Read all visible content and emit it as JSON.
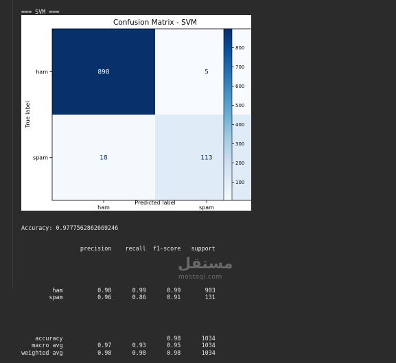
{
  "header": "=== SVM ===",
  "chart_data": {
    "type": "heatmap",
    "title": "Confusion Matrix - SVM",
    "xlabel": "Predicted label",
    "ylabel": "True label",
    "x_categories": [
      "ham",
      "spam"
    ],
    "y_categories": [
      "ham",
      "spam"
    ],
    "values": [
      [
        898,
        5
      ],
      [
        18,
        113
      ]
    ],
    "colormap": "Blues",
    "colorbar": {
      "min": 5,
      "max": 898,
      "ticks": [
        100,
        200,
        300,
        400,
        500,
        600,
        700,
        800
      ]
    },
    "grid": false
  },
  "accuracy_line": "Accuracy: 0.9777562862669246",
  "report": {
    "columns": [
      "precision",
      "recall",
      "f1-score",
      "support"
    ],
    "class_rows": [
      {
        "label": "ham",
        "values": [
          "0.98",
          "0.99",
          "0.99",
          "903"
        ]
      },
      {
        "label": "spam",
        "values": [
          "0.96",
          "0.86",
          "0.91",
          "131"
        ]
      }
    ],
    "summary_rows": [
      {
        "label": "accuracy",
        "values": [
          "",
          "",
          "0.98",
          "1034"
        ]
      },
      {
        "label": "macro avg",
        "values": [
          "0.97",
          "0.93",
          "0.95",
          "1034"
        ]
      },
      {
        "label": "weighted avg",
        "values": [
          "0.98",
          "0.98",
          "0.98",
          "1034"
        ]
      }
    ]
  },
  "watermark": {
    "arabic": "مستقل",
    "latin": "mostaql.com"
  }
}
